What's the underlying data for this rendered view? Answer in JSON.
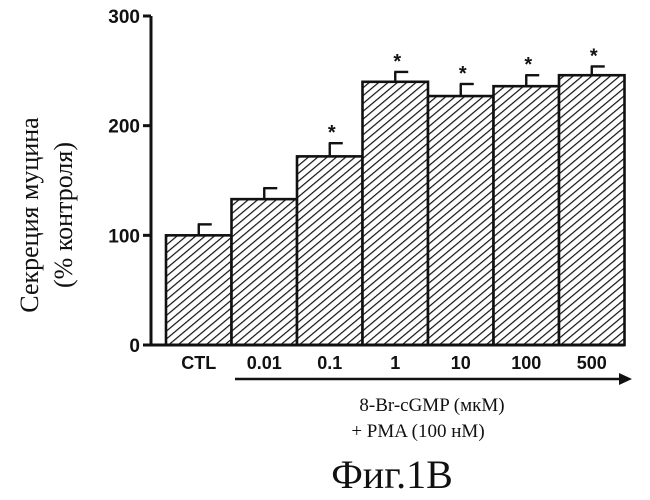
{
  "chart_data": {
    "type": "bar",
    "ylabel_line1": "Секреция муцина",
    "ylabel_line2": "(% контроля)",
    "ylim": [
      0,
      300
    ],
    "yticks": [
      "0",
      "100",
      "200",
      "300"
    ],
    "categories": [
      "CTL",
      "0.01",
      "0.1",
      "1",
      "10",
      "100",
      "500"
    ],
    "values": [
      100,
      133,
      172,
      240,
      227,
      236,
      246
    ],
    "errors": [
      10,
      10,
      12,
      9,
      11,
      10,
      8
    ],
    "significant": [
      false,
      false,
      true,
      true,
      true,
      true,
      true
    ],
    "significance_marker": "*",
    "treatment_line1": "8-Br-cGMP (мкМ)",
    "treatment_line2": "+ PMA (100 нМ)",
    "bar_fill": "hatched"
  },
  "figure_caption": "Фиг.1В"
}
